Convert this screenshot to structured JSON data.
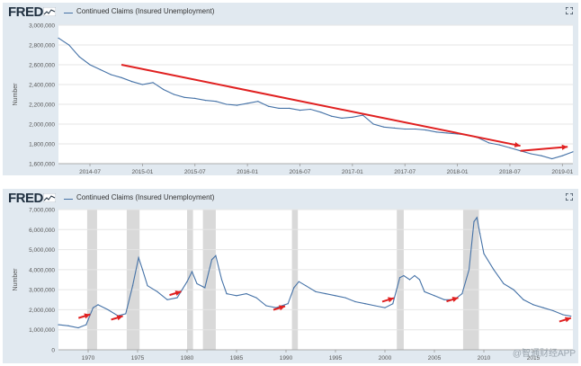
{
  "chart_data": [
    {
      "type": "line",
      "source": "FRED",
      "title": "Continued Claims (Insured Unemployment)",
      "ylabel": "Number",
      "xlabel": "",
      "ylim": [
        1600000,
        3000000
      ],
      "xlim": [
        2014.2,
        2019.1
      ],
      "y_ticks": [
        1600000,
        1800000,
        2000000,
        2200000,
        2400000,
        2600000,
        2800000,
        3000000
      ],
      "y_tick_labels": [
        "1,600,000",
        "1,800,000",
        "2,000,000",
        "2,200,000",
        "2,400,000",
        "2,600,000",
        "2,800,000",
        "3,000,000"
      ],
      "x_ticks": [
        2014.5,
        2015.0,
        2015.5,
        2016.0,
        2016.5,
        2017.0,
        2017.5,
        2018.0,
        2018.5,
        2019.0
      ],
      "x_tick_labels": [
        "2014-07",
        "2015-01",
        "2015-07",
        "2016-01",
        "2016-07",
        "2017-01",
        "2017-07",
        "2018-01",
        "2018-07",
        "2019-01"
      ],
      "series": [
        {
          "name": "Continued Claims (Insured Unemployment)",
          "x": [
            2014.2,
            2014.3,
            2014.4,
            2014.5,
            2014.6,
            2014.7,
            2014.8,
            2014.9,
            2015.0,
            2015.1,
            2015.2,
            2015.3,
            2015.4,
            2015.5,
            2015.6,
            2015.7,
            2015.8,
            2015.9,
            2016.0,
            2016.1,
            2016.2,
            2016.3,
            2016.4,
            2016.5,
            2016.6,
            2016.7,
            2016.8,
            2016.9,
            2017.0,
            2017.1,
            2017.2,
            2017.3,
            2017.4,
            2017.5,
            2017.6,
            2017.7,
            2017.8,
            2017.9,
            2018.0,
            2018.1,
            2018.2,
            2018.3,
            2018.4,
            2018.5,
            2018.6,
            2018.7,
            2018.8,
            2018.9,
            2019.0,
            2019.1
          ],
          "values": [
            2870000,
            2800000,
            2680000,
            2600000,
            2550000,
            2500000,
            2470000,
            2430000,
            2400000,
            2420000,
            2350000,
            2300000,
            2270000,
            2260000,
            2240000,
            2230000,
            2200000,
            2190000,
            2210000,
            2230000,
            2180000,
            2160000,
            2160000,
            2140000,
            2150000,
            2120000,
            2080000,
            2060000,
            2070000,
            2090000,
            2000000,
            1970000,
            1960000,
            1950000,
            1950000,
            1940000,
            1920000,
            1910000,
            1900000,
            1890000,
            1860000,
            1810000,
            1790000,
            1760000,
            1730000,
            1700000,
            1680000,
            1650000,
            1680000,
            1720000
          ]
        }
      ],
      "annotations": [
        {
          "type": "arrow",
          "color": "#e02020",
          "from": [
            2014.8,
            2600000
          ],
          "to": [
            2018.6,
            1780000
          ]
        },
        {
          "type": "arrow",
          "color": "#e02020",
          "from": [
            2018.6,
            1730000
          ],
          "to": [
            2019.05,
            1770000
          ]
        }
      ]
    },
    {
      "type": "line",
      "source": "FRED",
      "title": "Continued Claims (Insured Unemployment)",
      "ylabel": "Number",
      "xlabel": "",
      "ylim": [
        0,
        7000000
      ],
      "xlim": [
        1967,
        2019
      ],
      "y_ticks": [
        0,
        1000000,
        2000000,
        3000000,
        4000000,
        5000000,
        6000000,
        7000000
      ],
      "y_tick_labels": [
        "0",
        "1,000,000",
        "2,000,000",
        "3,000,000",
        "4,000,000",
        "5,000,000",
        "6,000,000",
        "7,000,000"
      ],
      "x_ticks": [
        1970,
        1975,
        1980,
        1985,
        1990,
        1995,
        2000,
        2005,
        2010,
        2015
      ],
      "x_tick_labels": [
        "1970",
        "1975",
        "1980",
        "1985",
        "1990",
        "1995",
        "2000",
        "2005",
        "2010",
        "2015"
      ],
      "recessions": [
        [
          1969.9,
          1970.9
        ],
        [
          1973.9,
          1975.2
        ],
        [
          1980.0,
          1980.6
        ],
        [
          1981.6,
          1982.9
        ],
        [
          1990.6,
          1991.2
        ],
        [
          2001.2,
          2001.9
        ],
        [
          2007.9,
          2009.5
        ]
      ],
      "series": [
        {
          "name": "Continued Claims (Insured Unemployment)",
          "x": [
            1967,
            1968,
            1969,
            1969.8,
            1970.5,
            1971,
            1972,
            1973,
            1973.8,
            1974.5,
            1975.1,
            1975.5,
            1976,
            1977,
            1978,
            1979,
            1980.0,
            1980.5,
            1981,
            1981.8,
            1982.5,
            1982.9,
            1983.5,
            1984,
            1985,
            1986,
            1987,
            1988,
            1989,
            1990.2,
            1990.8,
            1991.3,
            1992,
            1993,
            1994,
            1995,
            1996,
            1997,
            1998,
            1999,
            2000,
            2000.8,
            2001.5,
            2001.9,
            2002.5,
            2003,
            2003.5,
            2004,
            2005,
            2006,
            2007,
            2007.8,
            2008.5,
            2009.0,
            2009.3,
            2009.6,
            2010,
            2011,
            2012,
            2013,
            2014,
            2015,
            2016,
            2017,
            2018,
            2018.8
          ],
          "values": [
            1250000,
            1200000,
            1100000,
            1250000,
            2100000,
            2250000,
            2000000,
            1700000,
            1800000,
            3200000,
            4600000,
            4000000,
            3200000,
            2900000,
            2500000,
            2600000,
            3400000,
            3900000,
            3300000,
            3100000,
            4500000,
            4700000,
            3500000,
            2800000,
            2700000,
            2800000,
            2600000,
            2200000,
            2100000,
            2300000,
            3100000,
            3400000,
            3200000,
            2900000,
            2800000,
            2700000,
            2600000,
            2400000,
            2300000,
            2200000,
            2100000,
            2300000,
            3600000,
            3700000,
            3500000,
            3700000,
            3500000,
            2900000,
            2700000,
            2500000,
            2500000,
            2800000,
            4000000,
            6400000,
            6600000,
            5800000,
            4800000,
            4000000,
            3300000,
            3000000,
            2500000,
            2250000,
            2100000,
            1950000,
            1750000,
            1680000
          ]
        }
      ],
      "annotations": [
        {
          "type": "arrow",
          "color": "#e02020",
          "near": 1970.3
        },
        {
          "type": "arrow",
          "color": "#e02020",
          "near": 1973.6
        },
        {
          "type": "arrow",
          "color": "#e02020",
          "near": 1979.5
        },
        {
          "type": "arrow",
          "color": "#e02020",
          "near": 1990.0
        },
        {
          "type": "arrow",
          "color": "#e02020",
          "near": 2001.0
        },
        {
          "type": "arrow",
          "color": "#e02020",
          "near": 2007.5
        },
        {
          "type": "arrow",
          "color": "#e02020",
          "near": 2018.9
        }
      ]
    }
  ],
  "watermark": "@智通财经APP",
  "colors": {
    "line": "#4572a7",
    "arrow": "#e02020",
    "recession": "#d9d9d9",
    "panel": "#e1e9f0"
  },
  "icons": {
    "logo_mark": "fred-logo-graph-icon",
    "expand": "fullscreen-icon"
  }
}
